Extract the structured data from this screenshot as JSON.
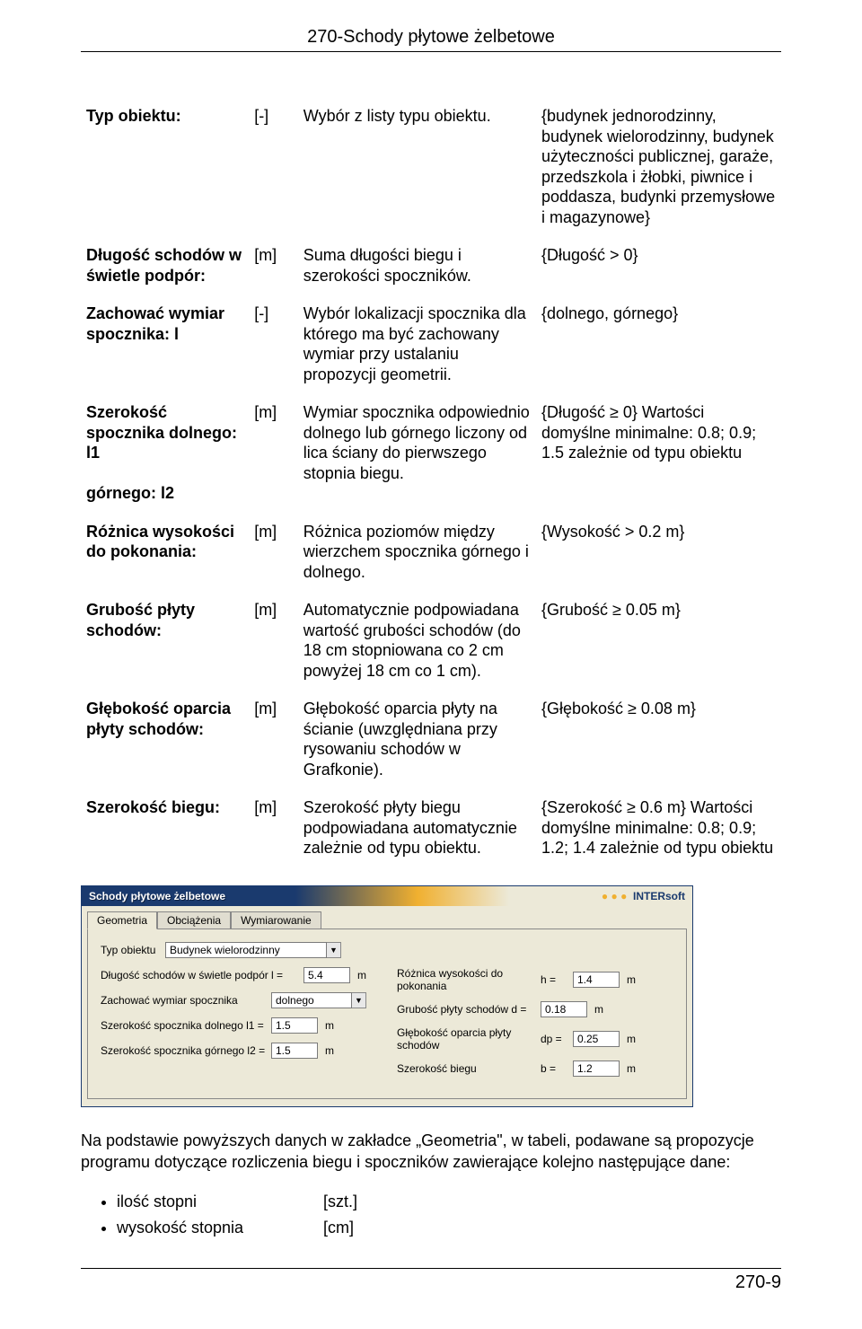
{
  "header": {
    "title": "270-Schody płytowe żelbetowe"
  },
  "rows": [
    {
      "name": "Typ obiektu:",
      "unit": "[-]",
      "desc": "Wybór z listy typu obiektu.",
      "range": "{budynek jednorodzinny, budynek wielorodzinny, budynek użyteczności publicznej, garaże, przedszkola i żłobki, piwnice i poddasza, budynki przemysłowe i magazynowe}"
    },
    {
      "name": "Długość schodów w świetle podpór:",
      "unit": "[m]",
      "desc": "Suma długości biegu i szerokości spoczników.",
      "range": "{Długość > 0}"
    },
    {
      "name": "Zachować wymiar spocznika: l",
      "unit": "[-]",
      "desc": "Wybór lokalizacji spocznika dla którego ma być zachowany wymiar przy ustalaniu propozycji geometrii.",
      "range": "{dolnego, górnego}"
    },
    {
      "name": "Szerokość spocznika dolnego: l1\n\ngórnego: l2",
      "unit": "[m]",
      "desc": "Wymiar spocznika odpowiednio dolnego lub górnego liczony od lica ściany do pierwszego stopnia biegu.",
      "range": "{Długość ≥ 0} Wartości domyślne minimalne: 0.8; 0.9; 1.5 zależnie od typu obiektu"
    },
    {
      "name": "Różnica wysokości do pokonania:",
      "unit": "[m]",
      "desc": "Różnica poziomów między wierzchem spocznika górnego i dolnego.",
      "range": "{Wysokość > 0.2 m}"
    },
    {
      "name": "Grubość płyty schodów:",
      "unit": "[m]",
      "desc": "Automatycznie podpowiadana wartość grubości schodów (do 18 cm stopniowana co 2 cm powyżej 18 cm co 1 cm).",
      "range": "{Grubość ≥ 0.05 m}"
    },
    {
      "name": "Głębokość oparcia płyty schodów:",
      "unit": "[m]",
      "desc": "Głębokość oparcia płyty na ścianie (uwzględniana przy rysowaniu schodów w Grafkonie).",
      "range": "{Głębokość ≥ 0.08 m}"
    },
    {
      "name": "Szerokość biegu:",
      "unit": "[m]",
      "desc": "Szerokość płyty biegu podpowiadana automatycznie zależnie od typu obiektu.",
      "range": "{Szerokość ≥ 0.6 m} Wartości domyślne minimalne: 0.8; 0.9; 1.2; 1.4 zależnie od typu obiektu"
    }
  ],
  "screenshot": {
    "titlebar": {
      "left": "Schody płytowe żelbetowe",
      "right_brand": "INTERsoft"
    },
    "tabs": [
      "Geometria",
      "Obciążenia",
      "Wymiarowanie"
    ],
    "active_tab": 0,
    "typ_label": "Typ obiektu",
    "typ_value": "Budynek wielorodzinny",
    "left_fields": [
      {
        "label": "Długość schodów w świetle podpór",
        "sym": "l  =",
        "value": "5.4",
        "unit": "m"
      },
      {
        "label": "Zachować wymiar spocznika",
        "sym": "",
        "value": "dolnego",
        "unit": "",
        "is_select": true
      },
      {
        "label": "Szerokość spocznika dolnego l1 =",
        "sym": "",
        "value": "1.5",
        "unit": "m"
      },
      {
        "label": "Szerokość spocznika górnego l2 =",
        "sym": "",
        "value": "1.5",
        "unit": "m"
      }
    ],
    "right_fields": [
      {
        "label": "Różnica wysokości do pokonania",
        "sym": "h  =",
        "value": "1.4",
        "unit": "m"
      },
      {
        "label": "Grubość płyty schodów d =",
        "sym": "",
        "value": "0.18",
        "unit": "m"
      },
      {
        "label": "Głębokość oparcia płyty schodów",
        "sym": "dp =",
        "value": "0.25",
        "unit": "m"
      },
      {
        "label": "Szerokość biegu",
        "sym": "b  =",
        "value": "1.2",
        "unit": "m"
      }
    ]
  },
  "paragraph": "Na podstawie powyższych danych w zakładce „Geometria\", w tabeli, podawane są propozycje programu dotyczące rozliczenia biegu i spoczników zawierające kolejno następujące dane:",
  "bullets": [
    {
      "text": "ilość stopni",
      "unit": "[szt.]"
    },
    {
      "text": "wysokość stopnia",
      "unit": "[cm]"
    }
  ],
  "footer": {
    "page": "270-9"
  }
}
